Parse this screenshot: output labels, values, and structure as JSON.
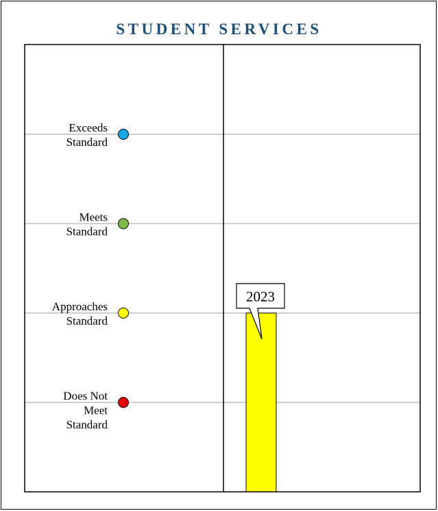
{
  "chart_data": {
    "type": "bar",
    "title": "STUDENT SERVICES",
    "levels": [
      {
        "lines": [
          "Exceeds",
          "Standard"
        ],
        "value": 4,
        "color": "#1aa7e8"
      },
      {
        "lines": [
          "Meets",
          "Standard"
        ],
        "value": 3,
        "color": "#7dba4a"
      },
      {
        "lines": [
          "Approaches",
          "Standard"
        ],
        "value": 2,
        "color": "#ffff00"
      },
      {
        "lines": [
          "Does Not",
          "Meet",
          "Standard"
        ],
        "value": 1,
        "color": "#e8000b"
      }
    ],
    "categories": [
      "2023"
    ],
    "values": [
      2
    ],
    "bar_color": "#ffff00",
    "ylim": [
      0,
      5
    ],
    "grid": true
  }
}
